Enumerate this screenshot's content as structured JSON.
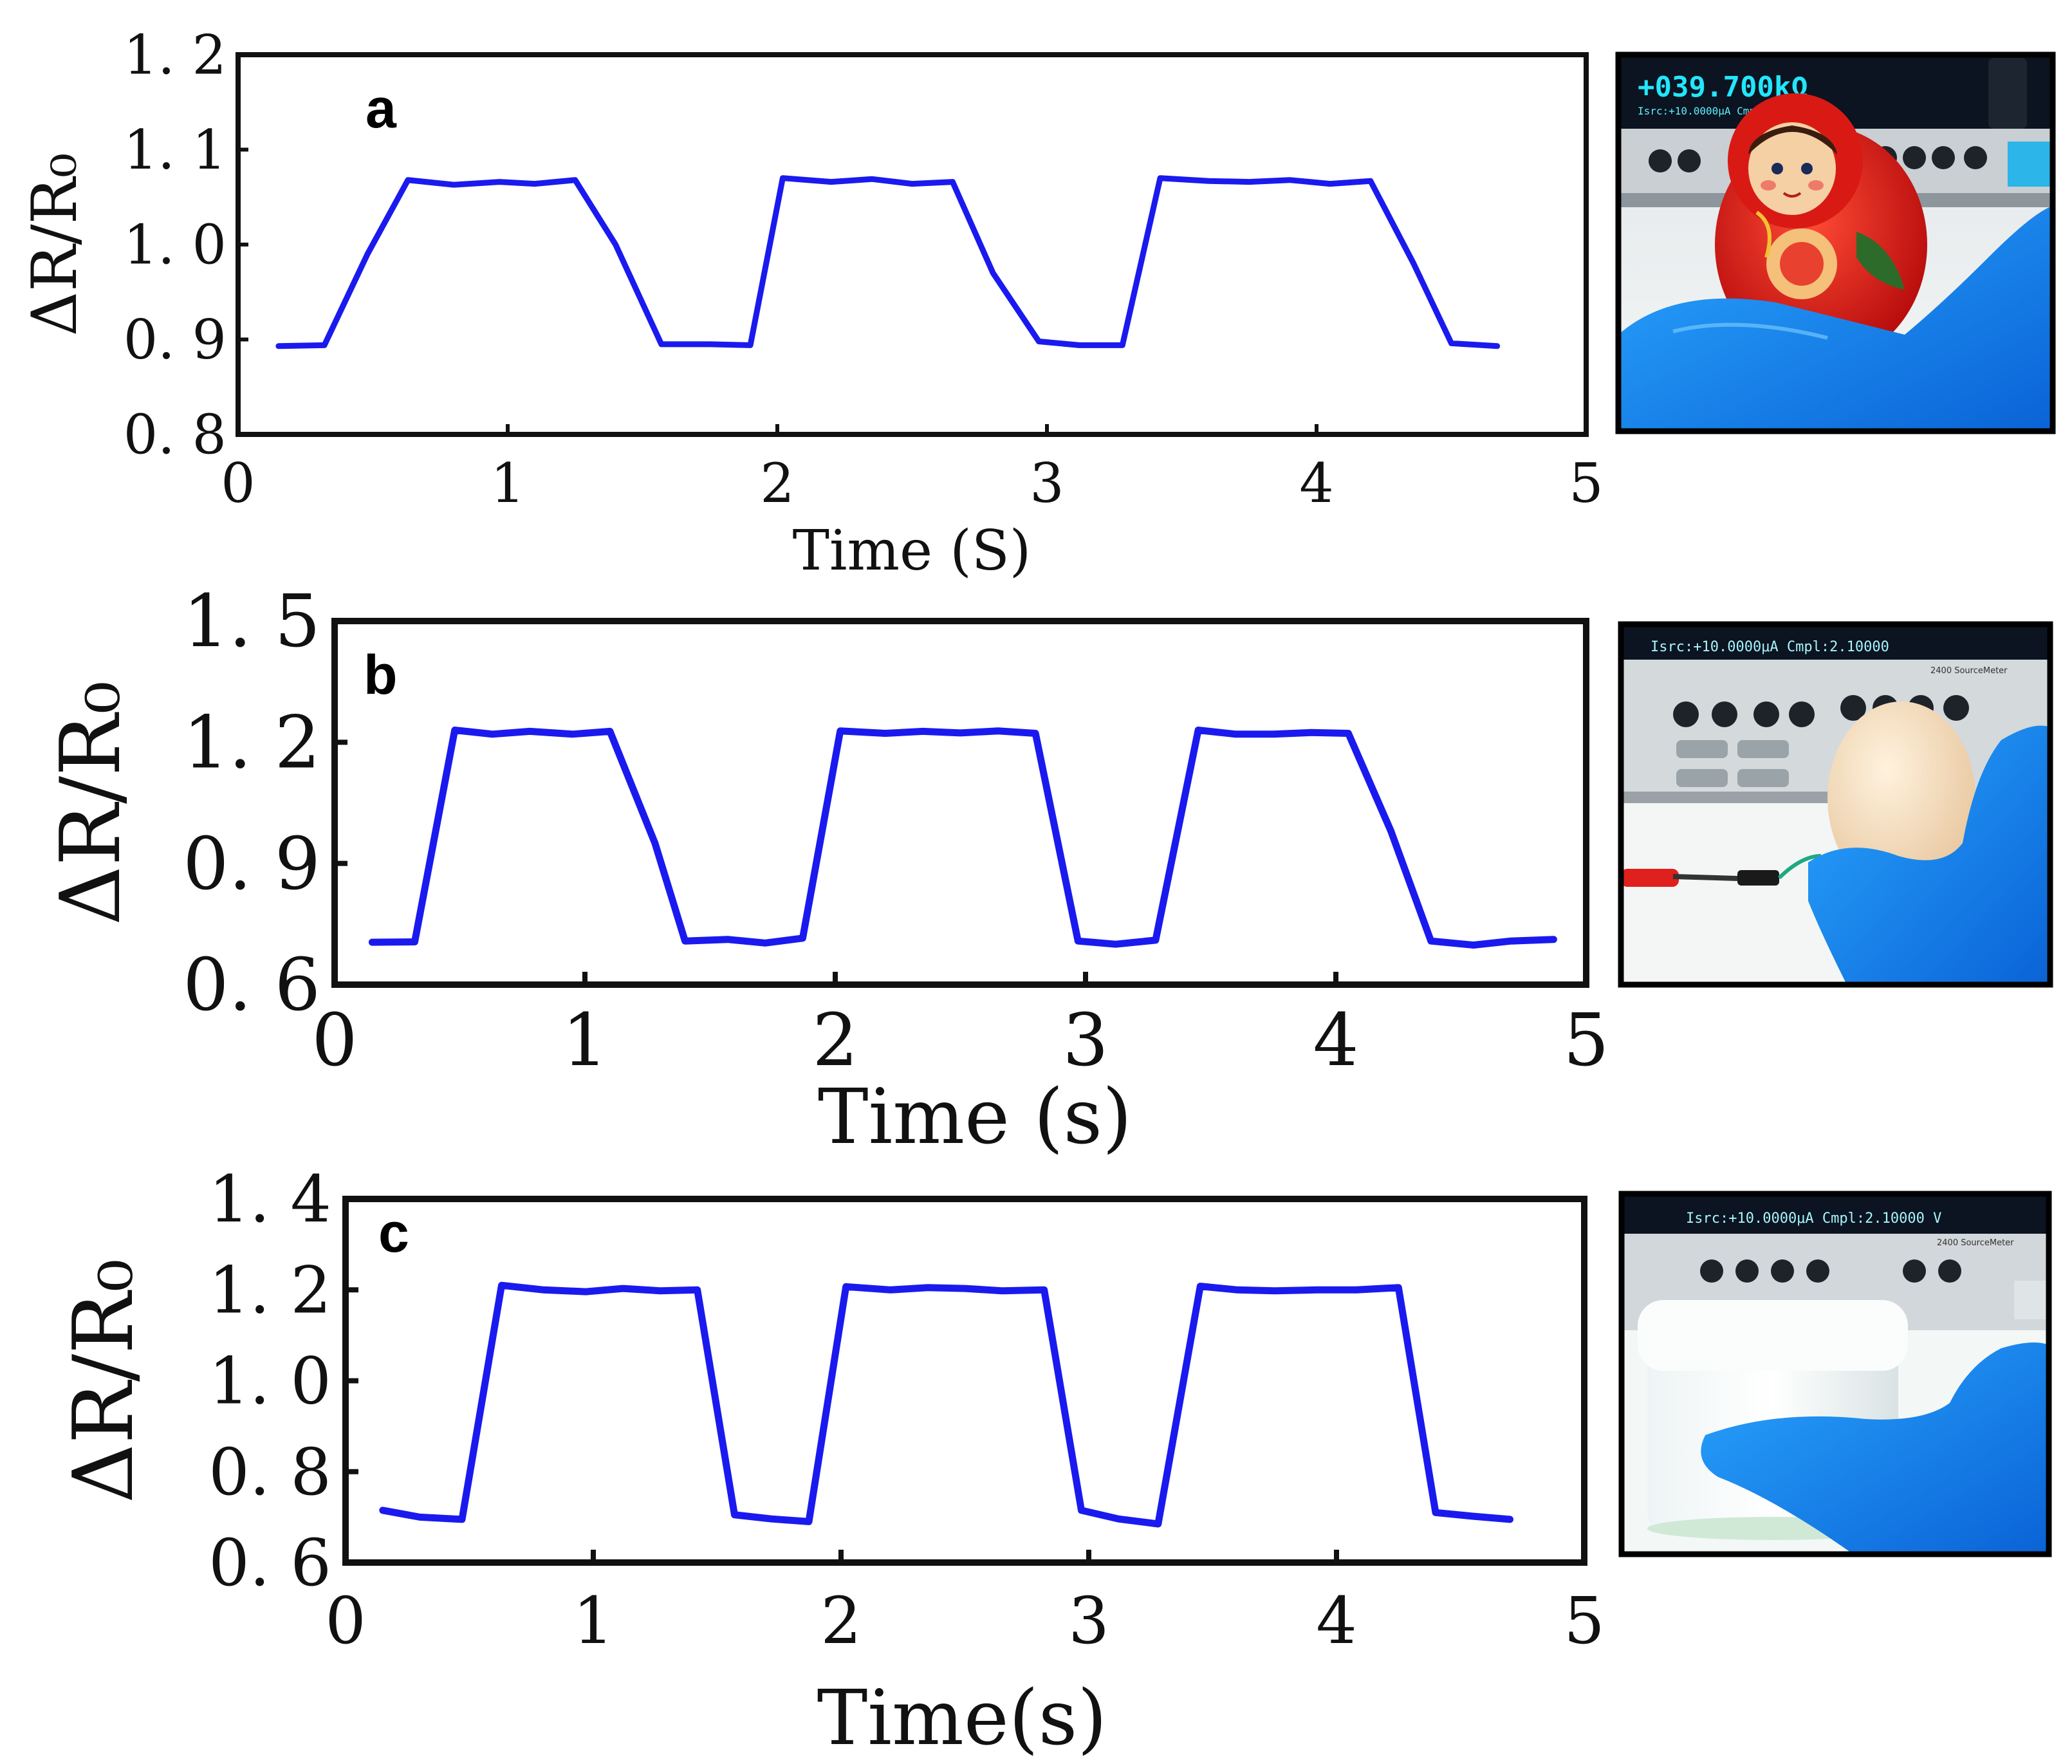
{
  "chart_data": [
    {
      "type": "line",
      "panel_label": "a",
      "xlabel": "Time (S)",
      "ylabel": "ΔR/R₀",
      "xlim": [
        0,
        5
      ],
      "ylim": [
        0.8,
        1.2
      ],
      "x_ticks": [
        0,
        1,
        2,
        3,
        4,
        5
      ],
      "x_tick_labels": [
        "0",
        "1",
        "2",
        "3",
        "4",
        "5"
      ],
      "y_ticks": [
        0.8,
        0.9,
        1.0,
        1.1,
        1.2
      ],
      "y_tick_labels": [
        "0. 8",
        "0. 9",
        "1. 0",
        "1. 1",
        "1. 2"
      ],
      "grid": false,
      "line_color": "#1a1aef",
      "series": [
        {
          "x": [
            0.15,
            0.32,
            0.48,
            0.63,
            0.8,
            0.97,
            1.1,
            1.25,
            1.4,
            1.57,
            1.75,
            1.9,
            2.02,
            2.2,
            2.35,
            2.5,
            2.65,
            2.8,
            2.97,
            3.12,
            3.28,
            3.42,
            3.6,
            3.75,
            3.9,
            4.05,
            4.2,
            4.36,
            4.5,
            4.67
          ],
          "y": [
            0.893,
            0.894,
            0.99,
            1.068,
            1.063,
            1.066,
            1.064,
            1.068,
            1.0,
            0.895,
            0.895,
            0.894,
            1.07,
            1.066,
            1.069,
            1.064,
            1.066,
            0.97,
            0.898,
            0.894,
            0.894,
            1.07,
            1.067,
            1.066,
            1.068,
            1.064,
            1.067,
            0.98,
            0.896,
            0.893
          ]
        }
      ]
    },
    {
      "type": "line",
      "panel_label": "b",
      "xlabel": "Time (s)",
      "ylabel": "ΔR/R₀",
      "xlim": [
        0,
        5
      ],
      "ylim": [
        0.6,
        1.5
      ],
      "x_ticks": [
        0,
        1,
        2,
        3,
        4,
        5
      ],
      "x_tick_labels": [
        "0",
        "1",
        "2",
        "3",
        "4",
        "5"
      ],
      "y_ticks": [
        0.6,
        0.9,
        1.2,
        1.5
      ],
      "y_tick_labels": [
        "0. 6",
        "0. 9",
        "1. 2",
        "1. 5"
      ],
      "grid": false,
      "line_color": "#1a1aef",
      "series": [
        {
          "x": [
            0.15,
            0.32,
            0.48,
            0.63,
            0.78,
            0.95,
            1.1,
            1.28,
            1.4,
            1.57,
            1.72,
            1.87,
            2.02,
            2.2,
            2.35,
            2.5,
            2.65,
            2.8,
            2.97,
            3.12,
            3.28,
            3.45,
            3.6,
            3.75,
            3.9,
            4.05,
            4.22,
            4.38,
            4.55,
            4.7,
            4.87
          ],
          "y": [
            0.705,
            0.706,
            1.23,
            1.22,
            1.227,
            1.22,
            1.227,
            0.95,
            0.708,
            0.712,
            0.703,
            0.715,
            1.228,
            1.222,
            1.227,
            1.223,
            1.228,
            1.222,
            0.708,
            0.7,
            0.71,
            1.23,
            1.22,
            1.22,
            1.224,
            1.222,
            0.98,
            0.708,
            0.698,
            0.708,
            0.712
          ]
        }
      ]
    },
    {
      "type": "line",
      "panel_label": "c",
      "xlabel": "Time(s)",
      "ylabel": "ΔR/R₀",
      "xlim": [
        0,
        5
      ],
      "ylim": [
        0.6,
        1.4
      ],
      "x_ticks": [
        0,
        1,
        2,
        3,
        4,
        5
      ],
      "x_tick_labels": [
        "0",
        "1",
        "2",
        "3",
        "4",
        "5"
      ],
      "y_ticks": [
        0.6,
        0.8,
        1.0,
        1.2,
        1.4
      ],
      "y_tick_labels": [
        "0. 6",
        "0. 8",
        "1. 0",
        "1. 2",
        "1. 4"
      ],
      "grid": false,
      "line_color": "#1a1aef",
      "series": [
        {
          "x": [
            0.15,
            0.3,
            0.47,
            0.63,
            0.8,
            0.97,
            1.12,
            1.27,
            1.42,
            1.57,
            1.72,
            1.87,
            2.02,
            2.2,
            2.35,
            2.5,
            2.65,
            2.82,
            2.97,
            3.12,
            3.28,
            3.45,
            3.6,
            3.75,
            3.92,
            4.08,
            4.25,
            4.4,
            4.55,
            4.7
          ],
          "y": [
            0.715,
            0.7,
            0.695,
            1.21,
            1.2,
            1.196,
            1.203,
            1.198,
            1.2,
            0.705,
            0.696,
            0.69,
            1.207,
            1.2,
            1.205,
            1.203,
            1.198,
            1.2,
            0.715,
            0.696,
            0.685,
            1.208,
            1.2,
            1.198,
            1.2,
            1.2,
            1.205,
            0.71,
            0.702,
            0.695
          ]
        }
      ]
    }
  ],
  "photos": [
    {
      "kind": "photo",
      "subject": "nesting-doll-on-sensor",
      "display_lines": [
        "+039.700kΩ",
        "Isrc:+10.0000μA  Cmpl:2.10000"
      ]
    },
    {
      "kind": "photo",
      "subject": "egg-on-sensor",
      "display_lines": [
        "Isrc:+10.0000μA  Cmpl:2.10000",
        "2400 SourceMeter"
      ]
    },
    {
      "kind": "photo",
      "subject": "jar-on-sensor",
      "display_lines": [
        "Isrc:+10.0000μA  Cmpl:2.10000  V",
        "2400 SourceMeter"
      ]
    }
  ]
}
